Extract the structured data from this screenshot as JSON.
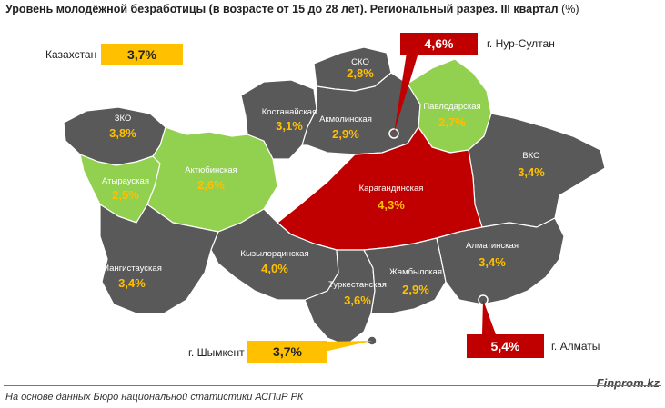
{
  "title": {
    "bold": "Уровень молодёжной безработицы (в возрасте от 15 до 28 лет). Региональный разрез. III квартал",
    "unit": "(%)"
  },
  "national": {
    "label": "Казахстан",
    "value": "3,7%"
  },
  "cities": {
    "nursultan": {
      "label": "г. Нур-Султан",
      "value": "4,6%"
    },
    "shymkent": {
      "label": "г. Шымкент",
      "value": "3,7%"
    },
    "almaty": {
      "label": "г. Алматы",
      "value": "5,4%"
    }
  },
  "regions": {
    "zko": {
      "name": "ЗКО",
      "value": "3,8%"
    },
    "atyrau": {
      "name": "Атырауская",
      "value": "2,5%"
    },
    "aktobe": {
      "name": "Актюбинская",
      "value": "2,6%"
    },
    "mangistau": {
      "name": "Мангистауская",
      "value": "3,4%"
    },
    "kostanay": {
      "name": "Костанайская",
      "value": "3,1%"
    },
    "sko": {
      "name": "СКО",
      "value": "2,8%"
    },
    "akmola": {
      "name": "Акмолинская",
      "value": "2,9%"
    },
    "pavlodar": {
      "name": "Павлодарская",
      "value": "2,7%"
    },
    "karaganda": {
      "name": "Карагандинская",
      "value": "4,3%"
    },
    "vko": {
      "name": "ВКО",
      "value": "3,4%"
    },
    "kyzylorda": {
      "name": "Кызылординская",
      "value": "4,0%"
    },
    "turkestan": {
      "name": "Туркестанская",
      "value": "3,6%"
    },
    "zhambyl": {
      "name": "Жамбылская",
      "value": "2,9%"
    },
    "almaty_obl": {
      "name": "Алматинская",
      "value": "3,4%"
    }
  },
  "colors": {
    "high": "#c00000",
    "low": "#92d050",
    "mid": "#595959",
    "highlight": "#ffc000"
  },
  "footer": {
    "source": "На основе данных Бюро национальной статистики АСПиР РК",
    "brand": "Finprom.kz"
  }
}
